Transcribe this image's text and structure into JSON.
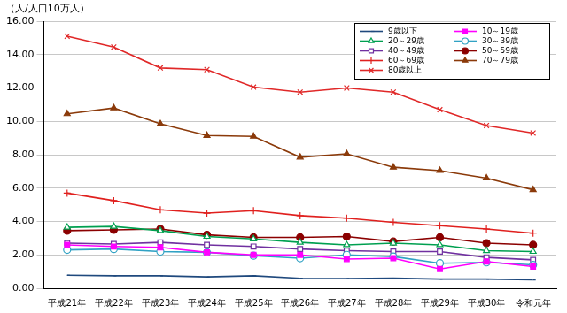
{
  "chart_data": {
    "type": "line",
    "y_label": "（人/人口10万人）",
    "categories": [
      "平成21年",
      "平成22年",
      "平成23年",
      "平成24年",
      "平成25年",
      "平成26年",
      "平成27年",
      "平成28年",
      "平成29年",
      "平成30年",
      "令和元年"
    ],
    "ylim": [
      0,
      16
    ],
    "yticks": [
      {
        "value": 0,
        "label": "0.00"
      },
      {
        "value": 2,
        "label": "2.00"
      },
      {
        "value": 4,
        "label": "4.00"
      },
      {
        "value": 6,
        "label": "6.00"
      },
      {
        "value": 8,
        "label": "8.00"
      },
      {
        "value": 10,
        "label": "10.00"
      },
      {
        "value": 12,
        "label": "12.00"
      },
      {
        "value": 14,
        "label": "14.00"
      },
      {
        "value": 16,
        "label": "16.00"
      }
    ],
    "grid": true,
    "legend": "upper right",
    "series": [
      {
        "name": "9歳以下",
        "color": "#1f497d",
        "marker": "dash",
        "values": [
          0.78,
          0.75,
          0.75,
          0.68,
          0.75,
          0.6,
          0.58,
          0.6,
          0.55,
          0.55,
          0.5
        ]
      },
      {
        "name": "10～19歳",
        "color": "#ff00ff",
        "marker": "square",
        "values": [
          2.6,
          2.5,
          2.45,
          2.15,
          2.0,
          2.0,
          1.75,
          1.8,
          1.15,
          1.6,
          1.3
        ]
      },
      {
        "name": "20～29歳",
        "color": "#00a050",
        "marker": "open-triangle",
        "values": [
          3.65,
          3.7,
          3.45,
          3.1,
          2.95,
          2.75,
          2.6,
          2.7,
          2.6,
          2.25,
          2.2
        ]
      },
      {
        "name": "30～39歳",
        "color": "#31a2c4",
        "marker": "open-circle",
        "values": [
          2.3,
          2.35,
          2.2,
          2.15,
          1.95,
          1.8,
          2.0,
          1.9,
          1.5,
          1.55,
          1.4
        ]
      },
      {
        "name": "40～49歳",
        "color": "#7030a0",
        "marker": "open-square",
        "values": [
          2.7,
          2.65,
          2.75,
          2.6,
          2.5,
          2.35,
          2.25,
          2.2,
          2.2,
          1.85,
          1.7
        ]
      },
      {
        "name": "50～59歳",
        "color": "#8b0000",
        "marker": "circle",
        "values": [
          3.45,
          3.5,
          3.55,
          3.2,
          3.05,
          3.05,
          3.1,
          2.8,
          3.05,
          2.7,
          2.6
        ]
      },
      {
        "name": "60～69歳",
        "color": "#e0201e",
        "marker": "plus",
        "values": [
          5.7,
          5.25,
          4.7,
          4.5,
          4.65,
          4.35,
          4.2,
          3.95,
          3.75,
          3.55,
          3.3
        ]
      },
      {
        "name": "70～79歳",
        "color": "#8b3a0a",
        "marker": "triangle",
        "values": [
          10.45,
          10.8,
          9.85,
          9.15,
          9.1,
          7.85,
          8.05,
          7.25,
          7.05,
          6.6,
          5.9
        ]
      },
      {
        "name": "80歳以上",
        "color": "#e02828",
        "marker": "x",
        "values": [
          15.1,
          14.45,
          13.2,
          13.1,
          12.05,
          11.75,
          12.0,
          11.75,
          10.7,
          9.75,
          9.3
        ]
      }
    ]
  }
}
